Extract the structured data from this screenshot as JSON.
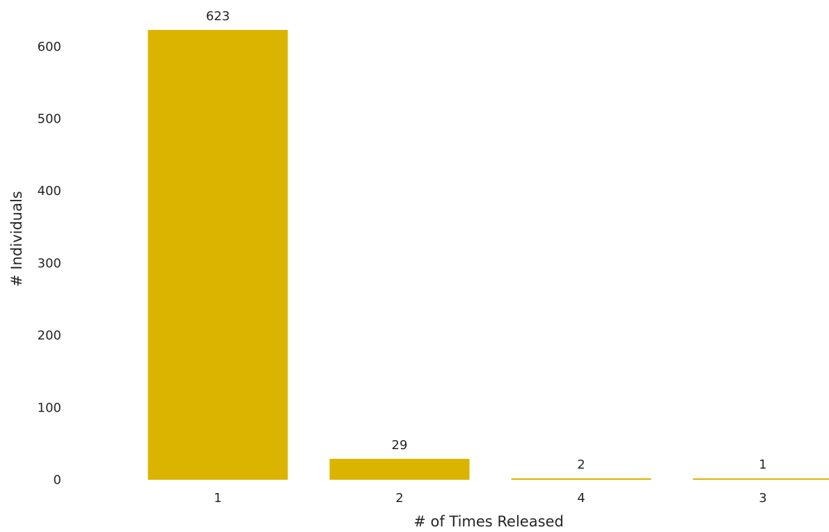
{
  "chart_data": {
    "type": "bar",
    "categories": [
      "1",
      "2",
      "4",
      "3"
    ],
    "values": [
      623,
      29,
      2,
      1
    ],
    "data_labels": [
      "623",
      "29",
      "2",
      "1"
    ],
    "xlabel": "# of Times Released",
    "ylabel": "# Individuals",
    "ylim": [
      0,
      623
    ],
    "yticks": [
      0,
      100,
      200,
      300,
      400,
      500,
      600
    ],
    "grid": false,
    "legend": "none",
    "bar_color": "#dbb400",
    "text_color": "#252423"
  }
}
